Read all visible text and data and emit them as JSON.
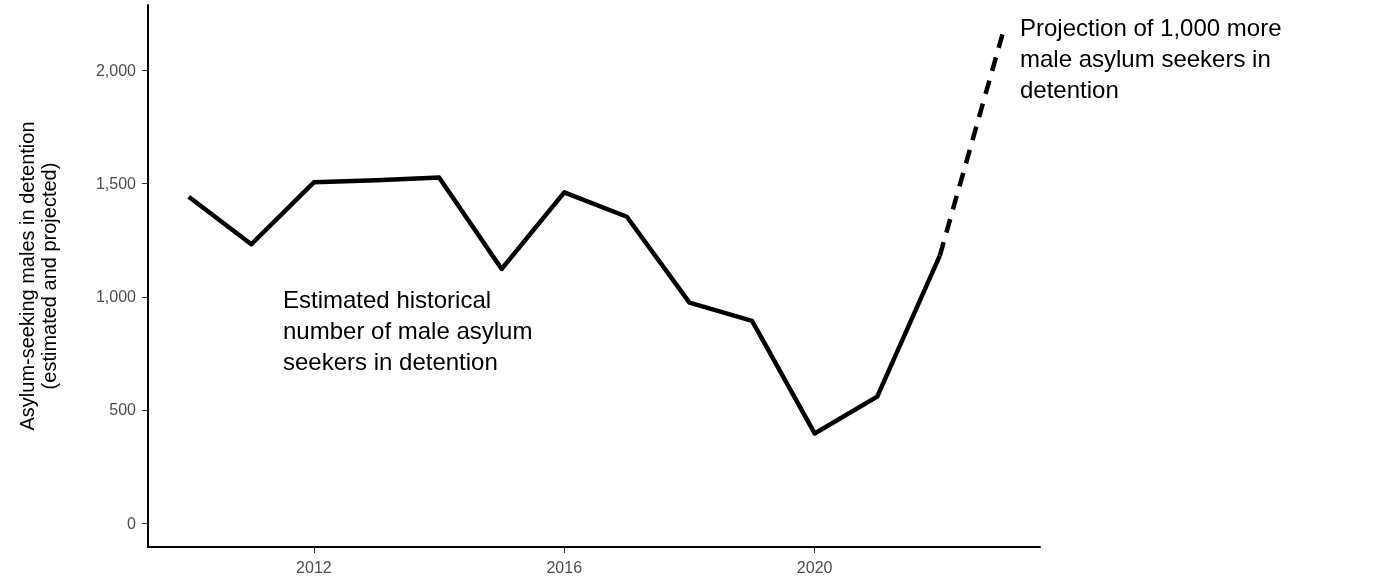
{
  "chart_data": {
    "type": "line",
    "ylabel": "Asylum-seeking males in detention\n(estimated and projected)",
    "series": [
      {
        "color": "#000000",
        "line_style": "solid",
        "x": [
          2010,
          2011,
          2012,
          2013,
          2014,
          2015,
          2016,
          2017,
          2018,
          2019,
          2020,
          2021,
          2022
        ],
        "values": [
          1442,
          1232,
          1506,
          1515,
          1527,
          1123,
          1462,
          1354,
          974,
          894,
          396,
          559,
          1182
        ]
      },
      {
        "color": "#000000",
        "line_style": "dashed",
        "x": [
          2022,
          2023
        ],
        "values": [
          1182,
          2160
        ]
      }
    ],
    "xlim": [
      2009.35,
      2023.6
    ],
    "xticks": [
      2012,
      2016,
      2020
    ],
    "ylim": [
      -106,
      2290
    ],
    "yticks": [
      0,
      500,
      {
        "value": 1000,
        "label": "1,000"
      },
      {
        "value": 1500,
        "label": "1,500"
      },
      {
        "value": 2000,
        "label": "2,000"
      }
    ],
    "annotations": [
      "Estimated historical\nnumber of male asylum\nseekers in detention",
      "Projection of 1,000 more\nmale asylum seekers in\ndetention"
    ],
    "grid": false,
    "marker": "none"
  }
}
